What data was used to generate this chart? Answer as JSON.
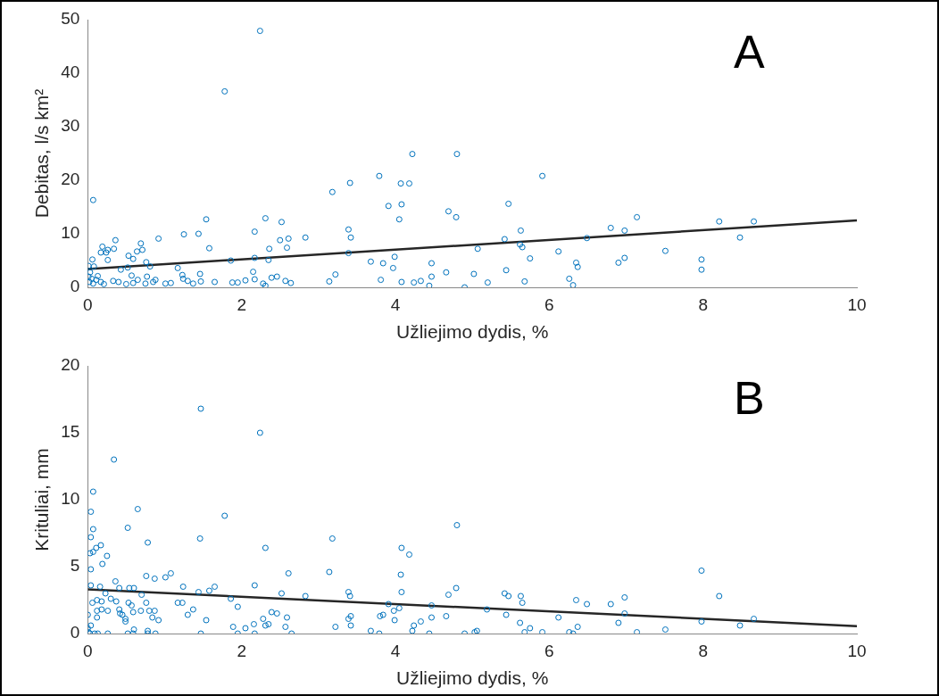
{
  "chart_data": [
    {
      "type": "scatter",
      "xlabel": "Užliejimo dydis, %",
      "ylabel": "Debitas, l/s km²",
      "annotations": [
        "A"
      ],
      "xlim": [
        0,
        10
      ],
      "xticks": [
        0,
        2,
        4,
        6,
        8,
        10
      ],
      "ylim": [
        0,
        50
      ],
      "yticks": [
        0,
        10,
        20,
        30,
        40,
        50
      ],
      "grid": false,
      "legend": false,
      "series": [
        {
          "type": "scatter",
          "marker": "circle",
          "color": "#0072bd",
          "x": [
            2.24,
            1.78,
            0.07,
            3.18,
            3.41,
            3.79,
            4.22,
            4.8,
            4.07,
            4.18,
            3.91,
            4.08,
            4.05,
            4.69,
            4.79,
            1.54,
            2.31,
            2.52,
            2.17,
            1.25,
            1.44,
            3.39,
            3.42,
            0.92,
            2.83,
            2.61,
            2.5,
            0.36,
            0.19,
            0.69,
            0.34,
            0.26,
            0.17,
            0.24,
            0.71,
            0.64,
            0.53,
            0.59,
            1.58,
            2.36,
            2.59,
            0.26,
            0.06,
            0.01,
            0.08,
            0.76,
            0.81,
            0.52,
            0.43,
            1.17,
            1.86,
            2.17,
            2.35,
            3.39,
            3.68,
            3.84,
            3.99,
            3.97,
            4.47,
            4.66,
            4.47,
            4.33,
            4.24,
            4.08,
            4.44,
            4.9,
            3.81,
            3.22,
            3.14,
            2.15,
            2.17,
            2.39,
            2.46,
            2.57,
            2.64,
            2.28,
            2.31,
            2.05,
            1.95,
            1.88,
            1.65,
            1.46,
            1.47,
            1.37,
            1.3,
            1.23,
            1.24,
            1.08,
            1.01,
            0.88,
            0.77,
            0.85,
            0.75,
            0.65,
            0.57,
            0.59,
            0.5,
            0.4,
            0.33,
            0.21,
            0.02,
            0.05,
            0.01,
            0.11,
            0.17,
            0.07,
            0.13,
            0.03,
            5.91,
            5.47,
            5.63,
            5.42,
            5.07,
            5.62,
            5.65,
            5.75,
            5.02,
            5.2,
            5.44,
            5.68,
            6.12,
            6.35,
            6.37,
            6.26,
            6.31,
            6.49,
            6.8,
            6.98,
            7.14,
            6.9,
            6.98,
            7.51,
            7.98,
            7.98,
            8.21,
            8.66,
            8.48
          ],
          "values": [
            47.9,
            36.6,
            16.3,
            17.8,
            19.5,
            20.8,
            24.9,
            24.9,
            19.4,
            19.4,
            15.2,
            15.5,
            12.7,
            14.2,
            13.1,
            12.7,
            12.9,
            12.2,
            10.4,
            9.9,
            10,
            10.8,
            9.3,
            9.1,
            9.3,
            9.1,
            8.8,
            8.8,
            7.6,
            8.2,
            7.2,
            7,
            6.5,
            6.5,
            7,
            6.7,
            5.9,
            5.3,
            7.3,
            7.2,
            7.4,
            5.1,
            5.2,
            4,
            3.9,
            4.7,
            3.9,
            3.7,
            3.3,
            3.6,
            5,
            5.5,
            5.1,
            6.4,
            4.8,
            4.5,
            5.7,
            3.6,
            4.5,
            2.8,
            2,
            1.2,
            0.9,
            1,
            0.3,
            0,
            1.4,
            2.4,
            1.1,
            2.9,
            1.5,
            1.8,
            2,
            1.2,
            0.8,
            0.7,
            0.3,
            1.3,
            0.9,
            0.9,
            1,
            2.5,
            1.1,
            0.7,
            1.2,
            2.3,
            1.6,
            0.8,
            0.7,
            1.4,
            2,
            1,
            0.7,
            1.4,
            2.2,
            0.8,
            0.6,
            1,
            1.2,
            0.6,
            1,
            1.6,
            2,
            1.4,
            1,
            0.7,
            2.1,
            2.8,
            20.8,
            15.6,
            10.6,
            9,
            7.2,
            8,
            7.5,
            5.4,
            2.5,
            0.9,
            3.2,
            1.1,
            6.7,
            4.6,
            3.8,
            1.6,
            0.4,
            9.2,
            11.1,
            10.6,
            13.1,
            4.6,
            5.5,
            6.8,
            5.2,
            3.3,
            12.3,
            12.3,
            9.3
          ]
        },
        {
          "type": "line",
          "marker": "none",
          "color": "#262626",
          "x": [
            0,
            10
          ],
          "values": [
            3.4,
            12.5
          ]
        }
      ]
    },
    {
      "type": "scatter",
      "xlabel": "Užliejimo dydis, %",
      "ylabel": "Krituliai, mm",
      "annotations": [
        "B"
      ],
      "xlim": [
        0,
        10
      ],
      "xticks": [
        0,
        2,
        4,
        6,
        8,
        10
      ],
      "ylim": [
        0,
        20
      ],
      "yticks": [
        0,
        5,
        10,
        15,
        20
      ],
      "grid": false,
      "legend": false,
      "series": [
        {
          "type": "scatter",
          "marker": "circle",
          "color": "#0072bd",
          "x": [
            1.47,
            2.24,
            0.34,
            0.07,
            0.04,
            0.65,
            1.78,
            0.07,
            0.52,
            0.04,
            0.78,
            1.46,
            3.18,
            4.8,
            2.31,
            4.08,
            4.18,
            0.17,
            0.11,
            0.07,
            0.03,
            0.25,
            0.19,
            0.04,
            0.76,
            0.87,
            1.01,
            1.08,
            2.61,
            3.14,
            4.07,
            0.36,
            0.41,
            0.54,
            0.6,
            0.16,
            0.04,
            1.24,
            1.65,
            2.17,
            1.44,
            1.58,
            2.52,
            2.83,
            3.39,
            3.41,
            4.08,
            4.69,
            4.79,
            0.3,
            0.37,
            0.23,
            0.12,
            0.18,
            0.06,
            0.53,
            0.7,
            0.76,
            1.17,
            1.23,
            1.86,
            3.91,
            4.47,
            0.57,
            1.95,
            0.69,
            0.8,
            0.87,
            0.41,
            0.26,
            0.12,
            0.18,
            0.42,
            0.59,
            1.37,
            2.39,
            2.46,
            4.05,
            3.98,
            0.45,
            1.3,
            0,
            0.12,
            0.49,
            0.49,
            0.84,
            0.92,
            1.54,
            2.28,
            2.59,
            3.39,
            3.42,
            3.8,
            3.84,
            3.99,
            4.33,
            4.47,
            4.66,
            4.24,
            4.22,
            1.89,
            2.05,
            2.16,
            2.31,
            2.35,
            2.57,
            3.22,
            3.42,
            3.68,
            0.04,
            0,
            0.01,
            0.03,
            0.09,
            0.13,
            0.26,
            0.52,
            0.59,
            0.78,
            0.88,
            1.47,
            1.95,
            2.17,
            2.65,
            3.79,
            4.44,
            4.9,
            0.6,
            0.78,
            7.98,
            5.42,
            5.47,
            5.63,
            5.65,
            6.35,
            6.49,
            6.8,
            6.98,
            8.21,
            5.19,
            5.44,
            6.98,
            6.12,
            5.62,
            6.9,
            7.98,
            8.66,
            8.48,
            5.75,
            5.68,
            5.91,
            6.37,
            6.26,
            6.31,
            7.14,
            7.51,
            5.03,
            5.06
          ],
          "values": [
            16.8,
            15,
            13,
            10.6,
            9.1,
            9.3,
            8.8,
            7.8,
            7.9,
            7.2,
            6.8,
            7.1,
            7.1,
            8.1,
            6.4,
            6.4,
            5.9,
            6.6,
            6.4,
            6.1,
            6,
            5.8,
            5.2,
            4.8,
            4.3,
            4.1,
            4.2,
            4.5,
            4.5,
            4.6,
            4.4,
            3.9,
            3.4,
            3.4,
            3.4,
            3.5,
            3.6,
            3.5,
            3.5,
            3.6,
            3.1,
            3.2,
            3,
            2.8,
            3.1,
            2.8,
            3.1,
            2.9,
            3.4,
            2.6,
            2.4,
            3,
            2.5,
            2.4,
            2.3,
            2.3,
            2.9,
            2.3,
            2.3,
            2.3,
            2.6,
            2.2,
            2.1,
            2.1,
            2,
            1.7,
            1.7,
            1.7,
            1.8,
            1.7,
            1.7,
            1.8,
            1.5,
            1.6,
            1.8,
            1.6,
            1.5,
            1.9,
            1.7,
            1.4,
            1.4,
            1.4,
            1.2,
            1.1,
            0.9,
            1.2,
            1,
            1,
            1.1,
            1.2,
            1.1,
            1.3,
            1.3,
            1.4,
            1,
            0.9,
            1.2,
            1.3,
            0.6,
            0.2,
            0.5,
            0.4,
            0.7,
            0.6,
            0.7,
            0.5,
            0.5,
            0.6,
            0.2,
            0.6,
            0.4,
            0.1,
            0,
            0,
            0,
            0,
            0,
            0,
            0,
            0,
            0,
            0,
            0,
            0,
            0,
            0,
            0,
            0.3,
            0.2,
            4.7,
            3,
            2.8,
            2.8,
            2.3,
            2.5,
            2.2,
            2.2,
            2.7,
            2.8,
            1.8,
            1.4,
            1.5,
            1.2,
            0.8,
            0.8,
            0.9,
            1.1,
            0.6,
            0.4,
            0.1,
            0.1,
            0.5,
            0.1,
            0,
            0.1,
            0.3,
            0.1,
            0.2
          ]
        },
        {
          "type": "line",
          "marker": "none",
          "color": "#262626",
          "x": [
            0,
            10
          ],
          "values": [
            3.3,
            0.55
          ]
        }
      ]
    }
  ]
}
